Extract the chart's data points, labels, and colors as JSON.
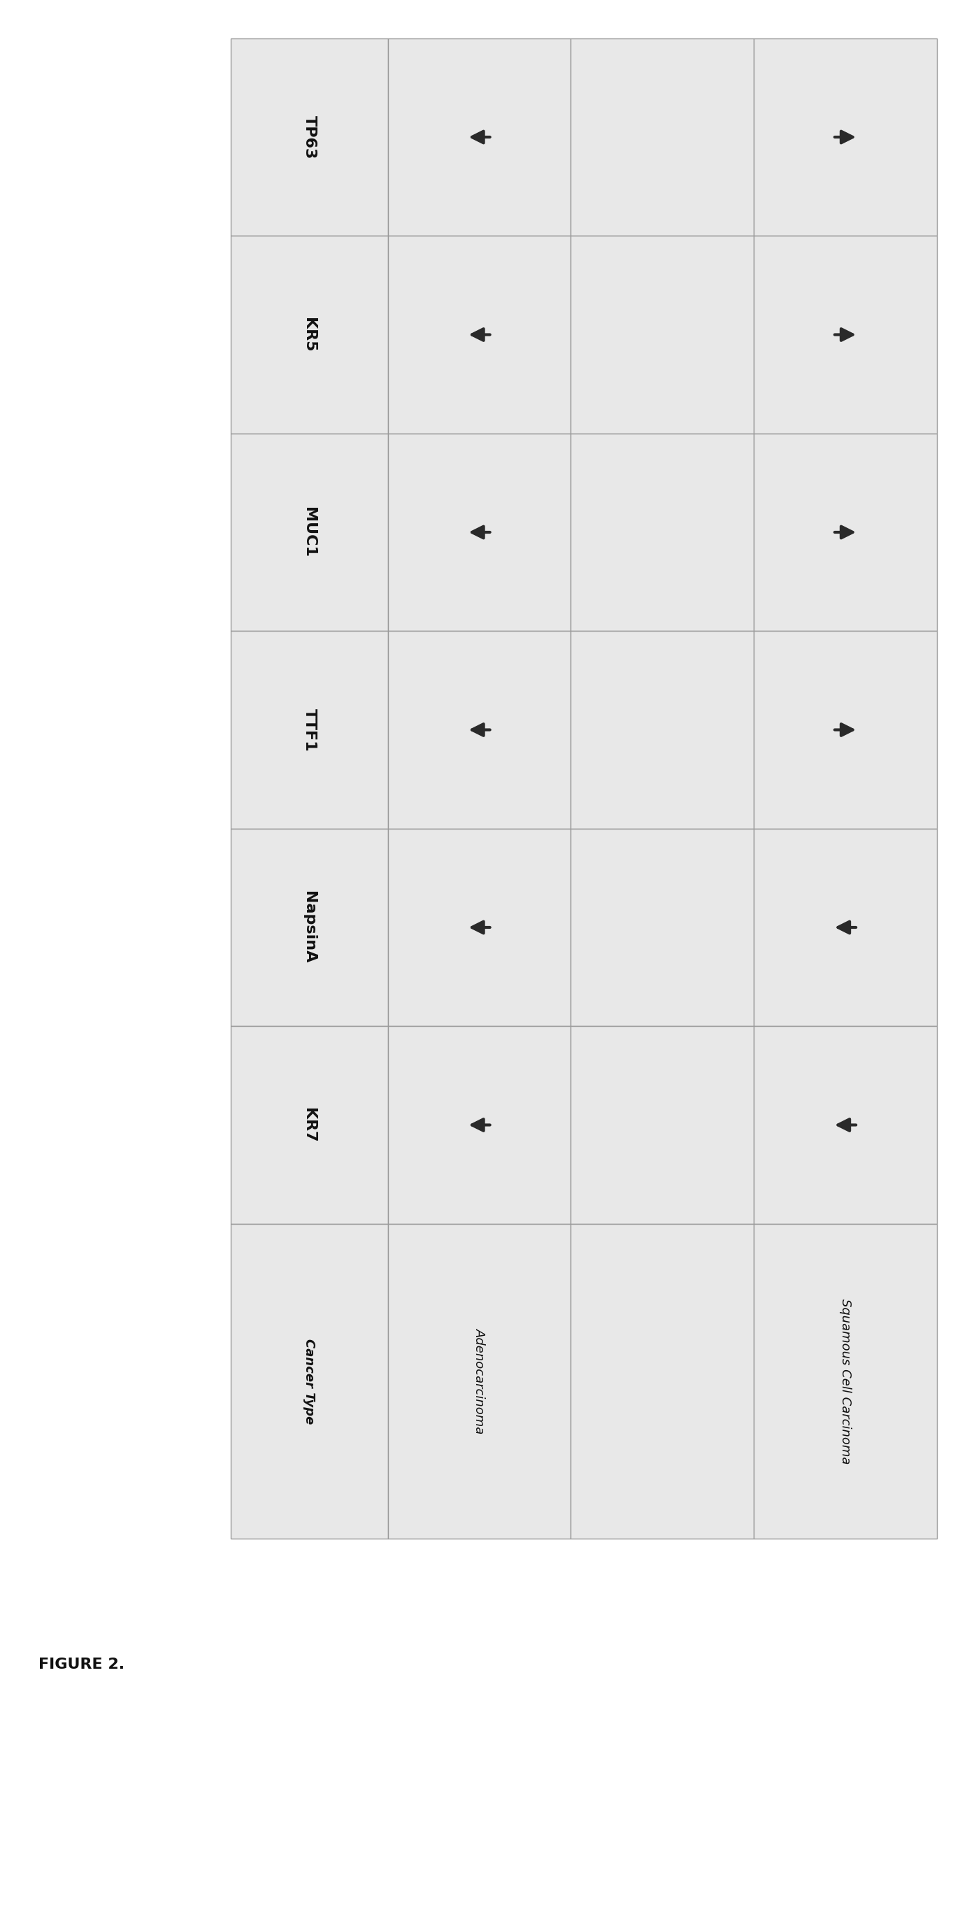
{
  "figure_label": "FIGURE 2.",
  "marker_labels": [
    "KR7",
    "NapsinA",
    "TTF1",
    "MUC1",
    "KR5",
    "TP63"
  ],
  "cancer_type_header": "Cancer Type",
  "cancer_types": [
    "Adenocarcinoma",
    "Squamous Cell Carcinoma"
  ],
  "arrows": {
    "Adenocarcinoma": [
      "left",
      "left",
      "left",
      "left",
      "left",
      "left"
    ],
    "Squamous Cell Carcinoma": [
      "right",
      "right",
      "right",
      "right",
      "left",
      "left"
    ]
  },
  "arrow_color": "#2a2a2a",
  "cell_bg_light": "#e8e8e8",
  "cell_bg_dark": "#d8d8d8",
  "grid_color": "#999999",
  "text_color": "#111111",
  "fig_label_color": "#111111",
  "header_fontsize": 16,
  "marker_fontsize": 16,
  "cancer_fontsize": 13,
  "fig_label_fontsize": 16
}
